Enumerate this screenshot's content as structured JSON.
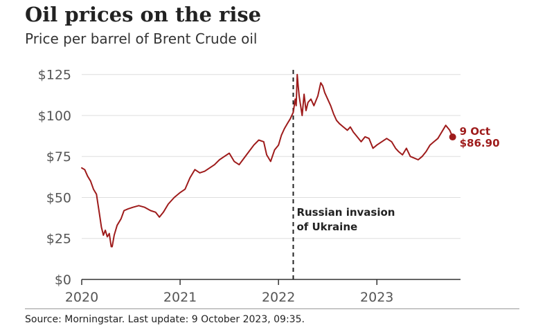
{
  "chart_data": {
    "type": "line",
    "title": "Oil prices on the rise",
    "subtitle": "Price per barrel of Brent Crude oil",
    "source": "Source: Morningstar. Last update:  9 October 2023, 09:35.",
    "xlim": [
      2020.0,
      2023.85
    ],
    "ylim": [
      0,
      127
    ],
    "y_ticks": [
      0,
      25,
      50,
      75,
      100,
      125
    ],
    "y_tick_labels": [
      "$0",
      "$25",
      "$50",
      "$75",
      "$100",
      "$125"
    ],
    "x_ticks": [
      2020,
      2021,
      2022,
      2023
    ],
    "x_tick_labels": [
      "2020",
      "2021",
      "2022",
      "2023"
    ],
    "grid": true,
    "colors": {
      "line": "#9e1b1b",
      "grid": "#dddddd",
      "axis": "#333333"
    },
    "series": [
      {
        "x": [
          2020.0,
          2020.03,
          2020.06,
          2020.09,
          2020.12,
          2020.15,
          2020.18,
          2020.2,
          2020.22,
          2020.24,
          2020.26,
          2020.28,
          2020.3,
          2020.31,
          2020.33,
          2020.36,
          2020.4,
          2020.43,
          2020.47,
          2020.52,
          2020.58,
          2020.64,
          2020.7,
          2020.75,
          2020.79,
          2020.83,
          2020.88,
          2020.94,
          2021.0,
          2021.05,
          2021.1,
          2021.15,
          2021.2,
          2021.25,
          2021.3,
          2021.35,
          2021.4,
          2021.45,
          2021.5,
          2021.55,
          2021.6,
          2021.65,
          2021.7,
          2021.75,
          2021.8,
          2021.85,
          2021.88,
          2021.92,
          2021.96,
          2022.0,
          2022.03,
          2022.06,
          2022.09,
          2022.12,
          2022.15,
          2022.17,
          2022.18,
          2022.19,
          2022.2,
          2022.21,
          2022.22,
          2022.24,
          2022.26,
          2022.28,
          2022.3,
          2022.33,
          2022.36,
          2022.4,
          2022.43,
          2022.45,
          2022.47,
          2022.5,
          2022.53,
          2022.56,
          2022.59,
          2022.62,
          2022.66,
          2022.7,
          2022.73,
          2022.76,
          2022.8,
          2022.84,
          2022.88,
          2022.92,
          2022.96,
          2023.0,
          2023.05,
          2023.1,
          2023.15,
          2023.19,
          2023.22,
          2023.26,
          2023.3,
          2023.34,
          2023.38,
          2023.42,
          2023.46,
          2023.5,
          2023.54,
          2023.58,
          2023.62,
          2023.66,
          2023.7,
          2023.74,
          2023.77
        ],
        "y": [
          68,
          67,
          63,
          60,
          55,
          52,
          40,
          32,
          27,
          30,
          26,
          28,
          20,
          20,
          27,
          33,
          37,
          42,
          43,
          44,
          45,
          44,
          42,
          41,
          38,
          41,
          46,
          50,
          53,
          55,
          62,
          67,
          65,
          66,
          68,
          70,
          73,
          75,
          77,
          72,
          70,
          74,
          78,
          82,
          85,
          84,
          76,
          72,
          79,
          82,
          88,
          92,
          95,
          98,
          102,
          110,
          106,
          125,
          118,
          112,
          108,
          100,
          113,
          103,
          108,
          110,
          106,
          112,
          120,
          118,
          114,
          110,
          106,
          101,
          97,
          95,
          93,
          91,
          93,
          90,
          87,
          84,
          87,
          86,
          80,
          82,
          84,
          86,
          84,
          80,
          78,
          76,
          80,
          75,
          74,
          73,
          75,
          78,
          82,
          84,
          86,
          90,
          94,
          91,
          86.9
        ]
      }
    ],
    "annotations": [
      {
        "x": 2022.15,
        "lines": [
          "Russian invasion",
          "of Ukraine"
        ]
      }
    ],
    "end_label": {
      "lines": [
        "9 Oct",
        "$86.90"
      ],
      "x": 2023.77,
      "y": 86.9
    }
  }
}
